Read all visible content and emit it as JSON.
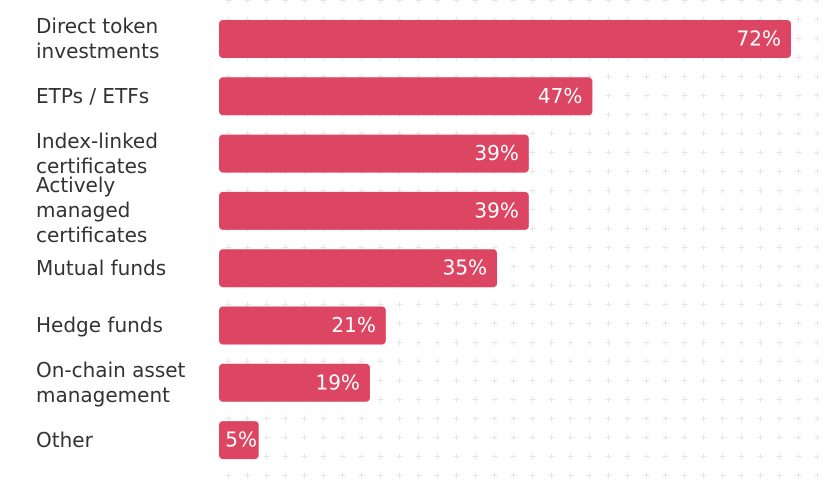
{
  "chart_data": {
    "type": "bar",
    "orientation": "horizontal",
    "categories": [
      "Direct token investments",
      "ETPs / ETFs",
      "Index-linked certificates",
      "Actively managed certificates",
      "Mutual funds",
      "Hedge funds",
      "On-chain asset management",
      "Other"
    ],
    "values": [
      72,
      47,
      39,
      39,
      35,
      21,
      19,
      5
    ],
    "value_labels": [
      "72%",
      "47%",
      "39%",
      "39%",
      "35%",
      "21%",
      "19%",
      "5%"
    ],
    "color": "#dc4662"
  }
}
